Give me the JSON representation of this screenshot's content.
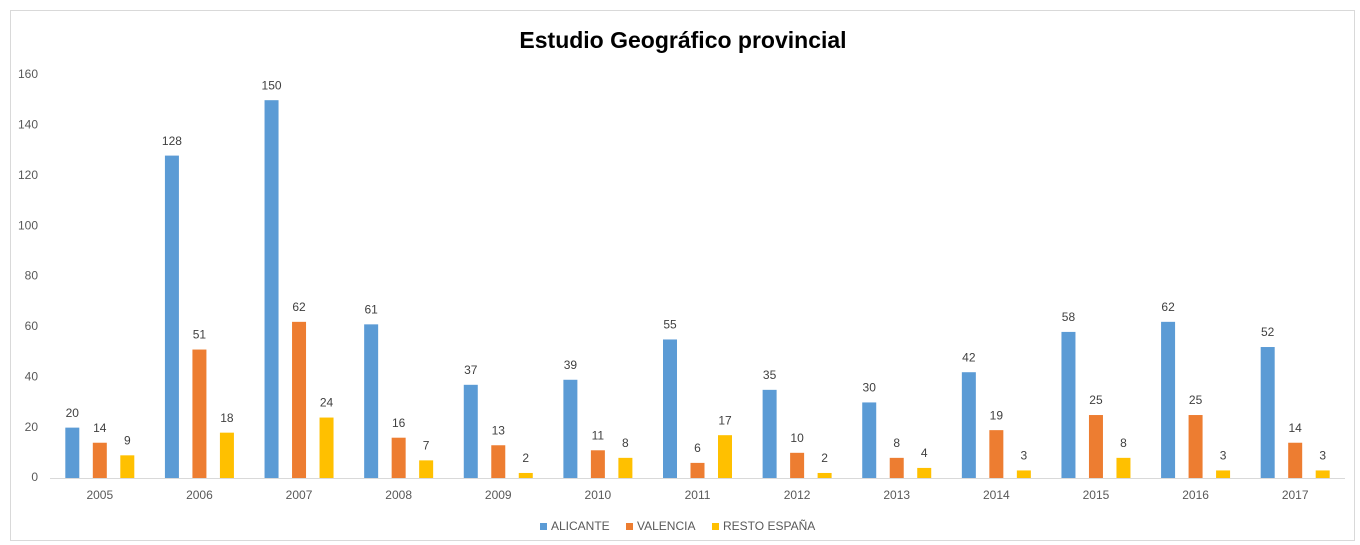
{
  "chart_data": {
    "type": "bar",
    "title": "Estudio Geográfico provincial",
    "categories": [
      "2005",
      "2006",
      "2007",
      "2008",
      "2009",
      "2010",
      "2011",
      "2012",
      "2013",
      "2014",
      "2015",
      "2016",
      "2017"
    ],
    "series": [
      {
        "name": "ALICANTE",
        "color": "#5b9bd5",
        "values": [
          20,
          128,
          150,
          61,
          37,
          39,
          55,
          35,
          30,
          42,
          58,
          62,
          52
        ]
      },
      {
        "name": "VALENCIA",
        "color": "#ed7d31",
        "values": [
          14,
          51,
          62,
          16,
          13,
          11,
          6,
          10,
          8,
          19,
          25,
          25,
          14
        ]
      },
      {
        "name": "RESTO ESPAÑA",
        "color": "#ffc000",
        "values": [
          9,
          18,
          24,
          7,
          2,
          8,
          17,
          2,
          4,
          3,
          8,
          3,
          3
        ]
      }
    ],
    "ylim": [
      0,
      160
    ],
    "yticks": [
      0,
      20,
      40,
      60,
      80,
      100,
      120,
      140,
      160
    ],
    "grid": false,
    "legend": "bottom"
  }
}
